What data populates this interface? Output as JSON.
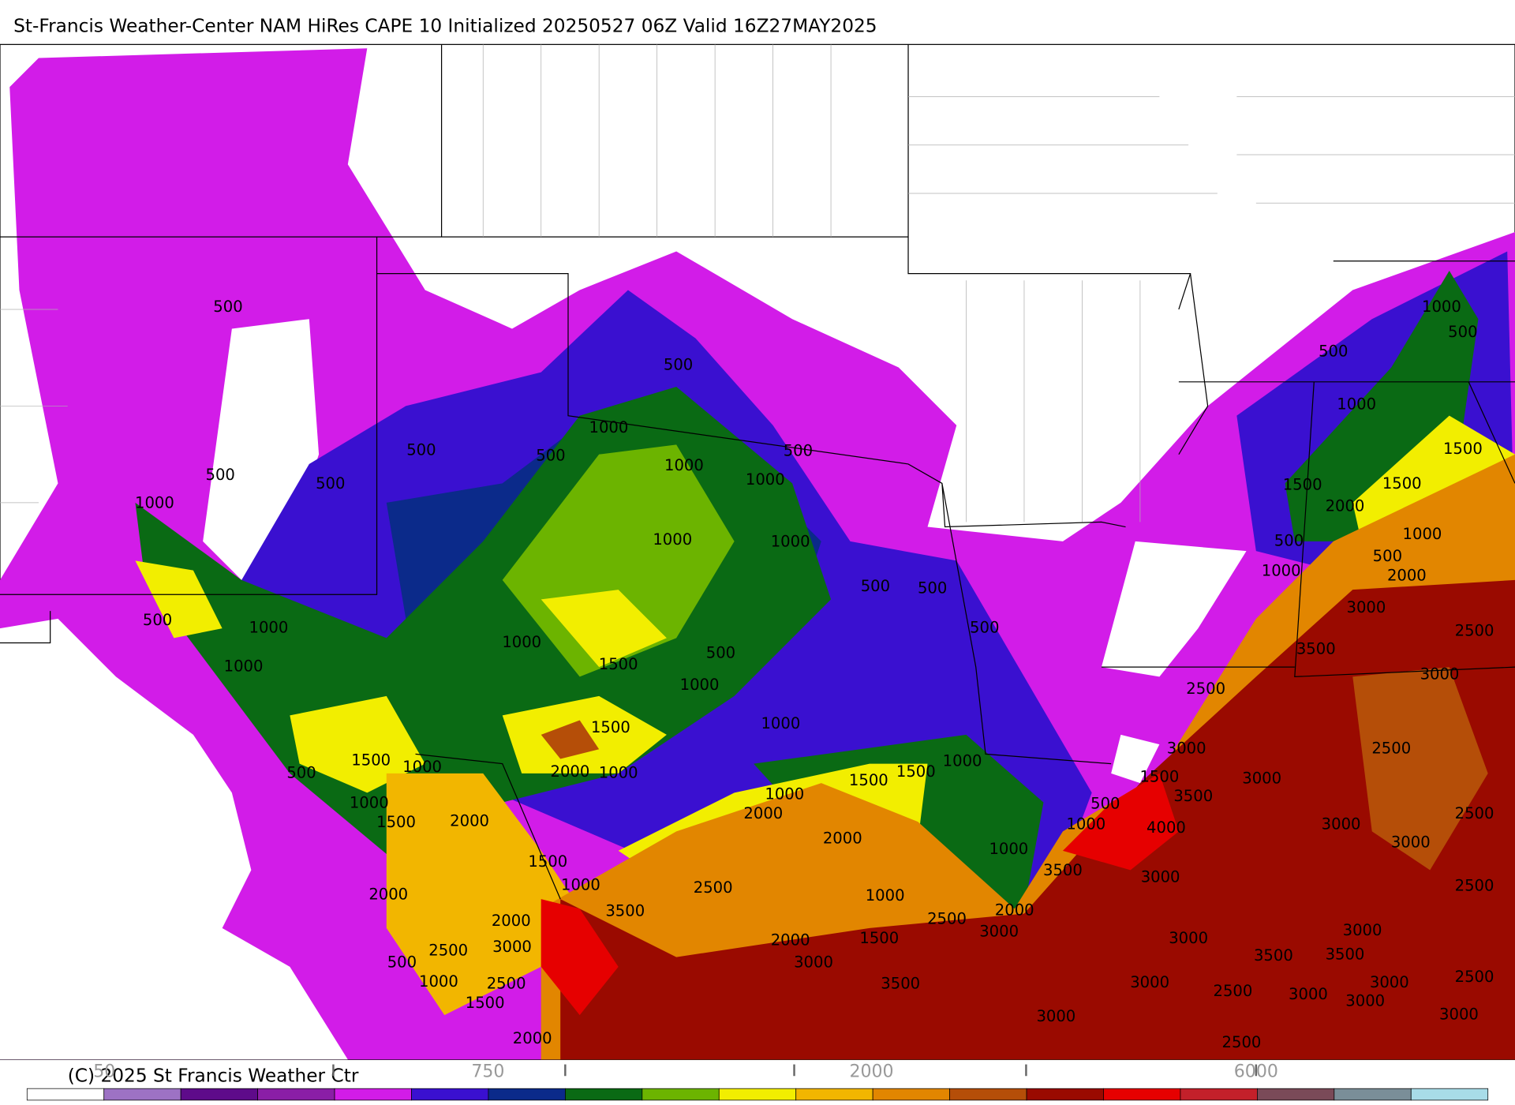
{
  "header": {
    "title": "St-Francis Weather-Center NAM HiRes CAPE  10 Initialized 20250527 06Z Valid 16Z27MAY2025"
  },
  "map": {
    "contour_labels": [
      500,
      500,
      1000,
      500,
      500,
      500,
      500,
      500,
      1000,
      1000,
      1000,
      1000,
      1000,
      500,
      500,
      500,
      1000,
      500,
      1000,
      500,
      1000,
      1500,
      1000,
      1500,
      1000,
      1500,
      1000,
      500,
      2000,
      1000,
      1500,
      1500,
      1000,
      1000,
      1000,
      1500,
      2000,
      2000,
      2000,
      1000,
      1500,
      1000,
      2500,
      3500,
      1000,
      2000,
      2000,
      2500,
      2000,
      3000,
      2500,
      3000,
      2000,
      3000,
      1500,
      500,
      1000,
      2500,
      1500,
      2000,
      3500,
      3000,
      1000,
      500,
      500,
      1000,
      1500,
      1500,
      1500,
      2000,
      1000,
      500,
      500,
      1000,
      2000,
      3000,
      2500,
      3500,
      3000,
      2500,
      3000,
      2500,
      3000,
      1500,
      3500,
      500,
      1000,
      4000,
      3000,
      2500,
      3000,
      3500,
      3000,
      2500,
      3000,
      3000,
      3500,
      3500,
      3000,
      2500,
      3000,
      3000,
      2500,
      3000,
      3000,
      2500
    ]
  },
  "footer": {
    "copyright": "(C) 2025 St Francis Weather Ctr"
  },
  "colorbar": {
    "colors": [
      "#ffffff",
      "#9d72c4",
      "#5e0b8a",
      "#8a1ea6",
      "#d21ce8",
      "#3a10d0",
      "#0b2a8a",
      "#0a6a14",
      "#6cb400",
      "#f2ee00",
      "#f2b600",
      "#e28600",
      "#b54e08",
      "#9a0a00",
      "#e60000",
      "#c3202a",
      "#7a4a58",
      "#7a8e98",
      "#a8dce8"
    ],
    "labels": [
      50,
      750,
      2000,
      6000
    ]
  }
}
